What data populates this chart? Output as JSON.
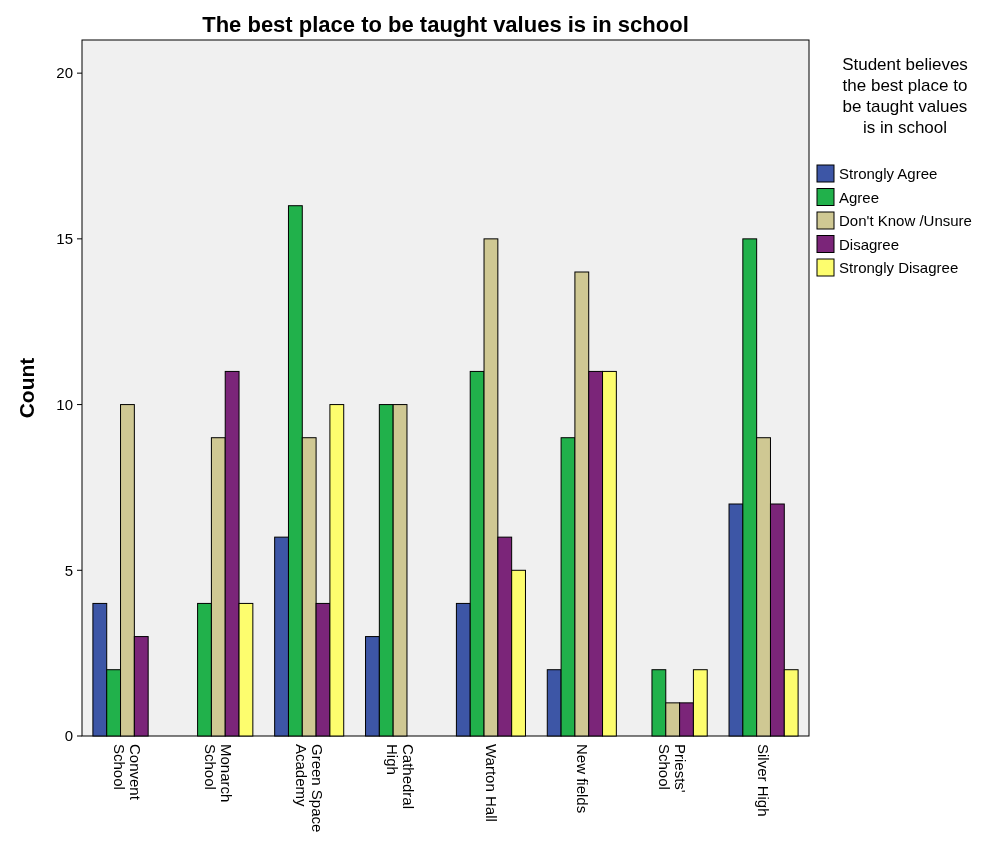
{
  "chart_data": {
    "type": "bar",
    "title": "The best place to be taught values is in school",
    "ylabel": "Count",
    "categories": [
      "Convent School",
      "Monarch School",
      "Green Space Academy",
      "Cathedral High",
      "Warton Hall",
      "New fields",
      "Priests' School",
      "Silver High"
    ],
    "legend_title": "Student believes the best place to be taught values is in school",
    "series": [
      {
        "name": "Strongly Agree",
        "color": "#3d56a6",
        "values": [
          4,
          0,
          6,
          3,
          4,
          2,
          0,
          7
        ]
      },
      {
        "name": "Agree",
        "color": "#21b14b",
        "values": [
          2,
          4,
          16,
          10,
          11,
          9,
          2,
          15
        ]
      },
      {
        "name": "Don't Know /Unsure",
        "color": "#cfc893",
        "values": [
          10,
          9,
          9,
          10,
          15,
          14,
          1,
          9
        ]
      },
      {
        "name": "Disagree",
        "color": "#7b2579",
        "values": [
          3,
          11,
          4,
          0,
          6,
          11,
          1,
          7
        ]
      },
      {
        "name": "Strongly Disagree",
        "color": "#fdfd6e",
        "values": [
          0,
          4,
          10,
          0,
          5,
          11,
          2,
          2
        ]
      }
    ],
    "ylim": [
      0,
      21
    ],
    "yticks": [
      0,
      5,
      10,
      15,
      20
    ],
    "grid": false,
    "legend": "right"
  }
}
